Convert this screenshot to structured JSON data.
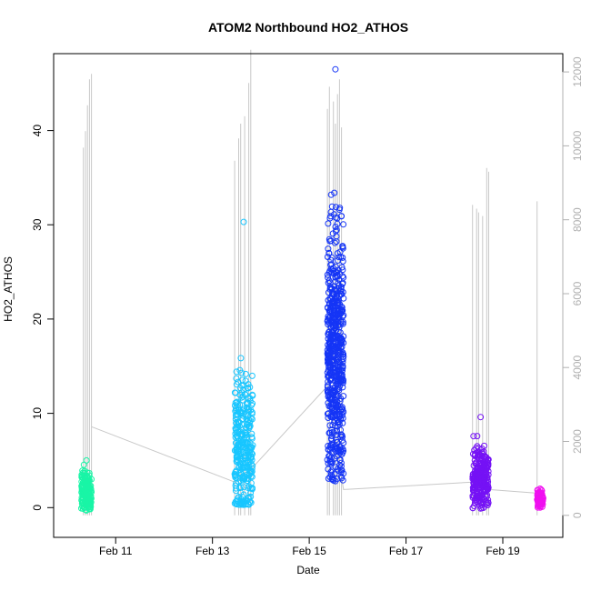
{
  "chart_data": {
    "type": "scatter",
    "title": "ATOM2 Northbound HO2_ATHOS",
    "xlabel": "Date",
    "ylabel": "HO2_ATHOS",
    "x_axis": {
      "type": "date",
      "range": [
        "2014-02-10 00:00",
        "2014-02-19 23:00"
      ],
      "ticks": [
        {
          "date": "2014-02-11",
          "label": "Feb 11"
        },
        {
          "date": "2014-02-13",
          "label": "Feb 13"
        },
        {
          "date": "2014-02-15",
          "label": "Feb 15"
        },
        {
          "date": "2014-02-17",
          "label": "Feb 17"
        },
        {
          "date": "2014-02-19",
          "label": "Feb 19"
        }
      ]
    },
    "y_axis_left": {
      "range": [
        -2,
        47
      ],
      "ticks": [
        0,
        10,
        20,
        30,
        40
      ]
    },
    "y_axis_right": {
      "range": [
        -300,
        12200
      ],
      "ticks": [
        0,
        2000,
        4000,
        6000,
        8000,
        10000,
        12000
      ],
      "color": "#b0b0b0"
    },
    "grid": false,
    "legend": "none",
    "series": [
      {
        "color": "#19f5a6",
        "x_start": "2014-02-10 07:00",
        "x_end": "2014-02-10 12:00",
        "y_center": 1.6,
        "y_spread": 1.0,
        "y_max": 5.0,
        "y_min": -0.3,
        "count": 180
      },
      {
        "color": "#18c6ff",
        "x_start": "2014-02-13 11:00",
        "x_end": "2014-02-13 20:00",
        "y_center": 6.0,
        "y_spread": 4.0,
        "y_max": 30.3,
        "y_min": 0.3,
        "count": 320
      },
      {
        "color": "#1535f6",
        "x_start": "2014-02-15 09:00",
        "x_end": "2014-02-15 17:00",
        "y_center": 16.0,
        "y_spread": 7.0,
        "y_max": 46.5,
        "y_min": 2.8,
        "count": 600
      },
      {
        "color": "#7512f5",
        "x_start": "2014-02-18 09:00",
        "x_end": "2014-02-18 17:00",
        "y_center": 3.2,
        "y_spread": 1.5,
        "y_max": 9.6,
        "y_min": -0.1,
        "count": 280
      },
      {
        "color": "#f00ff0",
        "x_start": "2014-02-19 17:00",
        "x_end": "2014-02-19 20:00",
        "y_center": 0.9,
        "y_spread": 0.5,
        "y_max": 2.0,
        "y_min": 0.0,
        "count": 70
      }
    ],
    "secondary_line": {
      "color": "#c8c8c8",
      "axis": "right",
      "spikes": [
        {
          "x": "2014-02-10 08:00",
          "y": 9950
        },
        {
          "x": "2014-02-10 09:00",
          "y": 10400
        },
        {
          "x": "2014-02-10 10:00",
          "y": 11100
        },
        {
          "x": "2014-02-10 11:00",
          "y": 11800
        },
        {
          "x": "2014-02-10 12:00",
          "y": 11950
        },
        {
          "x": "2014-02-13 11:00",
          "y": 9600
        },
        {
          "x": "2014-02-13 13:00",
          "y": 10200
        },
        {
          "x": "2014-02-13 14:00",
          "y": 10600
        },
        {
          "x": "2014-02-13 16:00",
          "y": 10800
        },
        {
          "x": "2014-02-13 18:00",
          "y": 11700
        },
        {
          "x": "2014-02-13 19:00",
          "y": 12600
        },
        {
          "x": "2014-02-15 09:00",
          "y": 11000
        },
        {
          "x": "2014-02-15 10:00",
          "y": 11600
        },
        {
          "x": "2014-02-15 12:00",
          "y": 11200
        },
        {
          "x": "2014-02-15 13:00",
          "y": 10600
        },
        {
          "x": "2014-02-15 14:00",
          "y": 11400
        },
        {
          "x": "2014-02-15 15:00",
          "y": 11800
        },
        {
          "x": "2014-02-15 16:00",
          "y": 10500
        },
        {
          "x": "2014-02-18 09:00",
          "y": 8400
        },
        {
          "x": "2014-02-18 11:00",
          "y": 8300
        },
        {
          "x": "2014-02-18 12:00",
          "y": 8200
        },
        {
          "x": "2014-02-18 14:00",
          "y": 8100
        },
        {
          "x": "2014-02-18 16:00",
          "y": 9400
        },
        {
          "x": "2014-02-18 17:00",
          "y": 9300
        },
        {
          "x": "2014-02-19 17:00",
          "y": 8500
        }
      ],
      "baseline": [
        {
          "x": "2014-02-10 12:00",
          "y": 2400
        },
        {
          "x": "2014-02-13 11:00",
          "y": 900
        },
        {
          "x": "2014-02-13 20:00",
          "y": 1300
        },
        {
          "x": "2014-02-15 09:00",
          "y": 3500
        },
        {
          "x": "2014-02-15 17:00",
          "y": 700
        },
        {
          "x": "2014-02-18 09:00",
          "y": 900
        },
        {
          "x": "2014-02-18 17:00",
          "y": 700
        },
        {
          "x": "2014-02-19 17:00",
          "y": 600
        }
      ]
    }
  }
}
